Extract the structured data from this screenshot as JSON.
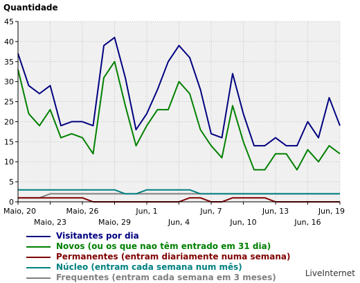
{
  "chart_data": {
    "type": "line",
    "ylabel": "Quantidade",
    "ylim": [
      0,
      45
    ],
    "yticks": [
      0,
      5,
      10,
      15,
      20,
      25,
      30,
      35,
      40,
      45
    ],
    "grid": true,
    "x_start": "Maio, 20",
    "x_end": "Jun, 19",
    "x_tick_labels": [
      {
        "day": 0,
        "row": 1,
        "label": "Maio, 20"
      },
      {
        "day": 3,
        "row": 2,
        "label": "Maio, 23"
      },
      {
        "day": 6,
        "row": 1,
        "label": "Maio, 26"
      },
      {
        "day": 9,
        "row": 2,
        "label": "Maio, 29"
      },
      {
        "day": 12,
        "row": 1,
        "label": "Jun, 1"
      },
      {
        "day": 15,
        "row": 2,
        "label": "Jun, 4"
      },
      {
        "day": 18,
        "row": 1,
        "label": "Jun, 7"
      },
      {
        "day": 21,
        "row": 2,
        "label": "Jun, 10"
      },
      {
        "day": 24,
        "row": 1,
        "label": "Jun, 13"
      },
      {
        "day": 27,
        "row": 2,
        "label": "Jun, 16"
      },
      {
        "day": 30,
        "row": 1,
        "label": "Jun, 19"
      }
    ],
    "series": [
      {
        "name": "Visitantes por dia",
        "color": "#000080",
        "values": [
          37,
          29,
          27,
          29,
          19,
          20,
          20,
          19,
          39,
          41,
          31,
          18,
          22,
          28,
          35,
          39,
          36,
          28,
          17,
          16,
          32,
          22,
          14,
          14,
          16,
          14,
          14,
          20,
          16,
          26,
          19
        ]
      },
      {
        "name": "Novos (ou os que nao têm entrado em 31 dia)",
        "color": "#008000",
        "values": [
          33,
          22,
          19,
          23,
          16,
          17,
          16,
          12,
          31,
          35,
          24,
          14,
          19,
          23,
          23,
          30,
          27,
          18,
          14,
          11,
          24,
          15,
          8,
          8,
          12,
          12,
          8,
          13,
          10,
          14,
          12
        ]
      },
      {
        "name": "Permanentes (entram diariamente numa semana)",
        "color": "#800000",
        "values": [
          1,
          1,
          1,
          1,
          1,
          1,
          1,
          0,
          0,
          0,
          0,
          0,
          0,
          0,
          0,
          0,
          1,
          1,
          0,
          0,
          1,
          1,
          1,
          1,
          0,
          0,
          0,
          0,
          0,
          0,
          0
        ]
      },
      {
        "name": "Núcleo (entram cada semana num mês)",
        "color": "#008080",
        "values": [
          3,
          3,
          3,
          3,
          3,
          3,
          3,
          3,
          3,
          3,
          2,
          2,
          3,
          3,
          3,
          3,
          3,
          2,
          2,
          2,
          2,
          2,
          2,
          2,
          2,
          2,
          2,
          2,
          2,
          2,
          2
        ]
      },
      {
        "name": "Frequentes (entram cada semana em 3 meses)",
        "color": "#808080",
        "values": [
          1,
          1,
          1,
          2,
          2,
          2,
          2,
          2,
          2,
          2,
          2,
          2,
          2,
          2,
          2,
          2,
          2,
          2,
          2,
          2,
          2,
          2,
          2,
          2,
          2,
          2,
          2,
          2,
          2,
          2,
          2
        ]
      }
    ]
  },
  "brand": "LiveInternet"
}
